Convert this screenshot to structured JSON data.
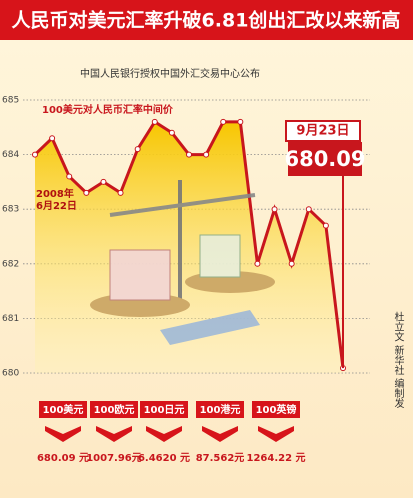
{
  "chart_data": {
    "type": "line",
    "title": "人民币对美元汇率升破6.81创出汇改以来新高",
    "subtitle": "中国人民银行授权中国外汇交易中心公布",
    "series_label": "100美元对人民币汇率中间价",
    "start_label": [
      "2008年",
      "6月22日"
    ],
    "end_label": "9月23日",
    "values": [
      684.0,
      684.3,
      683.6,
      683.3,
      683.5,
      683.3,
      684.1,
      684.6,
      684.4,
      684.0,
      684.0,
      684.6,
      684.6,
      682.0,
      683.0,
      682.0,
      683.0,
      682.7,
      680.09
    ],
    "color": "#c8161d",
    "ylim": [
      680,
      685
    ],
    "yticks": [
      680,
      681,
      682,
      683,
      684,
      685
    ],
    "grid": true,
    "credit": "杜立文 新华社 编制发"
  },
  "rates": [
    {
      "currency": "100美元",
      "rate": "680.09 元"
    },
    {
      "currency": "100欧元",
      "rate": "1007.96元"
    },
    {
      "currency": "100日元",
      "rate": "6.4620 元"
    },
    {
      "currency": "100港元",
      "rate": "87.562元"
    },
    {
      "currency": "100英镑",
      "rate": "1264.22 元"
    }
  ]
}
